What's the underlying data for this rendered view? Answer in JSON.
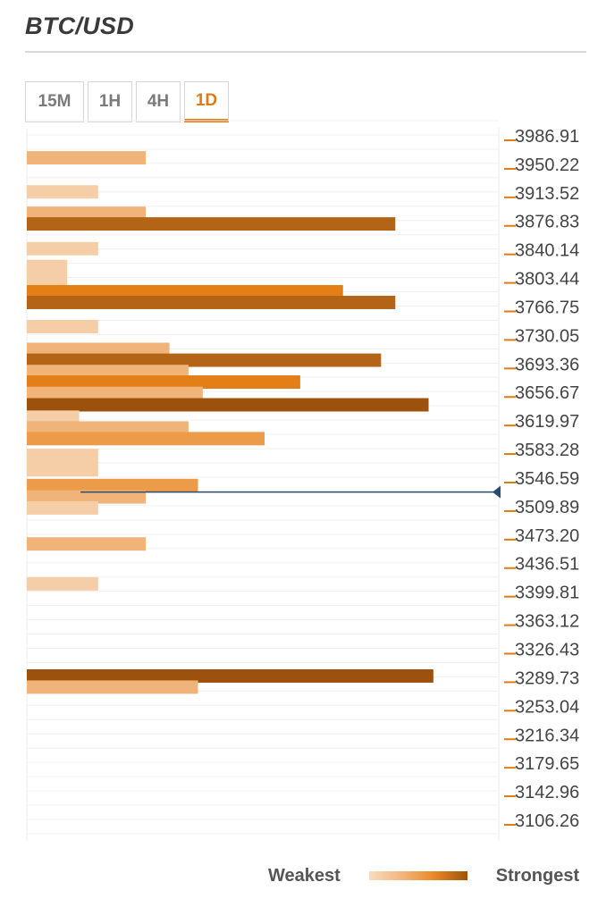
{
  "header": {
    "title": "BTC/USD"
  },
  "tabs": [
    {
      "label": "15M",
      "active": false
    },
    {
      "label": "1H",
      "active": false
    },
    {
      "label": "4H",
      "active": false
    },
    {
      "label": "1D",
      "active": true
    }
  ],
  "legend": {
    "weakest_label": "Weakest",
    "strongest_label": "Strongest"
  },
  "colors": {
    "accent": "#e07a14",
    "current_price_line": "#2c4a6e",
    "strength_1": "#f5cda6",
    "strength_2": "#f0b47a",
    "strength_3": "#ec9b48",
    "strength_4": "#e47f18",
    "strength_5": "#b36416",
    "strength_6": "#9c520d"
  },
  "chart_data": {
    "type": "bar",
    "orientation": "horizontal",
    "ylim": [
      3106.26,
      3986.91
    ],
    "current_price": 3527.5,
    "y_ticks": [
      "3986.91",
      "3950.22",
      "3913.52",
      "3876.83",
      "3840.14",
      "3803.44",
      "3766.75",
      "3730.05",
      "3693.36",
      "3656.67",
      "3619.97",
      "3583.28",
      "3546.59",
      "3509.89",
      "3473.20",
      "3436.51",
      "3399.81",
      "3363.12",
      "3326.43",
      "3289.73",
      "3253.04",
      "3216.34",
      "3179.65",
      "3142.96",
      "3106.26"
    ],
    "bars": [
      {
        "price": 3957.5,
        "value": 5,
        "strength": 2
      },
      {
        "price": 3913.6,
        "value": 3,
        "strength": 1
      },
      {
        "price": 3886.1,
        "value": 5,
        "strength": 2
      },
      {
        "price": 3872.4,
        "value": 15.5,
        "strength": 5
      },
      {
        "price": 3840.6,
        "value": 3,
        "strength": 1
      },
      {
        "price": 3808.5,
        "value": 1.7,
        "strength": 1,
        "span": 2
      },
      {
        "price": 3785.2,
        "value": 13.3,
        "strength": 4
      },
      {
        "price": 3771.4,
        "value": 15.5,
        "strength": 5
      },
      {
        "price": 3740.3,
        "value": 3,
        "strength": 1
      },
      {
        "price": 3711.0,
        "value": 6,
        "strength": 2
      },
      {
        "price": 3697.1,
        "value": 14.9,
        "strength": 5
      },
      {
        "price": 3682.6,
        "value": 6.8,
        "strength": 2
      },
      {
        "price": 3669.0,
        "value": 11.5,
        "strength": 4
      },
      {
        "price": 3654.4,
        "value": 7.4,
        "strength": 2
      },
      {
        "price": 3639.7,
        "value": 16.9,
        "strength": 6
      },
      {
        "price": 3623.8,
        "value": 2.2,
        "strength": 1
      },
      {
        "price": 3609.9,
        "value": 6.8,
        "strength": 2
      },
      {
        "price": 3596.2,
        "value": 10,
        "strength": 3
      },
      {
        "price": 3565.4,
        "value": 3,
        "strength": 1,
        "span": 2
      },
      {
        "price": 3535.9,
        "value": 7.2,
        "strength": 3
      },
      {
        "price": 3521.2,
        "value": 5,
        "strength": 2
      },
      {
        "price": 3507.0,
        "value": 3,
        "strength": 1
      },
      {
        "price": 3460.7,
        "value": 5,
        "strength": 2
      },
      {
        "price": 3409.3,
        "value": 3,
        "strength": 1
      },
      {
        "price": 3290.8,
        "value": 17.1,
        "strength": 6
      },
      {
        "price": 3276.5,
        "value": 7.2,
        "strength": 2
      }
    ]
  }
}
